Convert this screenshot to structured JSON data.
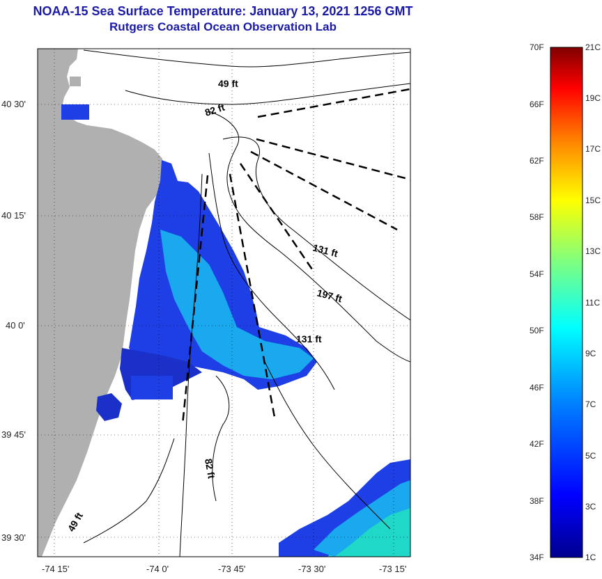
{
  "title": "NOAA-15 Sea Surface Temperature:  January 13, 2021 1256 GMT",
  "subtitle": "Rutgers Coastal Ocean Observation Lab",
  "latitude_labels": [
    "40 30'",
    "40 15'",
    "40 0'",
    "39 45'",
    "39 30'"
  ],
  "longitude_labels": [
    "-74 15'",
    "-74 0'",
    "-73 45'",
    "-73 30'",
    "-73 15'"
  ],
  "depth_labels": [
    "49 ft",
    "82 ft",
    "131 ft",
    "197 ft",
    "131 ft",
    "82 ft",
    "49 ft"
  ],
  "colorbar": {
    "fahrenheit_labels": [
      "70F",
      "66F",
      "62F",
      "58F",
      "54F",
      "50F",
      "46F",
      "42F",
      "38F",
      "34F"
    ],
    "celsius_labels": [
      "21C",
      "19C",
      "17C",
      "15C",
      "13C",
      "11C",
      "9C",
      "7C",
      "5C",
      "3C",
      "1C"
    ],
    "range_fahrenheit": [
      34,
      70
    ],
    "range_celsius": [
      1,
      21
    ]
  },
  "colors": {
    "title": "#1a1aa6",
    "land": "#b0b0b0",
    "water_cold": "#1e3fe6",
    "water_mid": "#1aa8ee",
    "water_warm": "#20d8c8"
  }
}
